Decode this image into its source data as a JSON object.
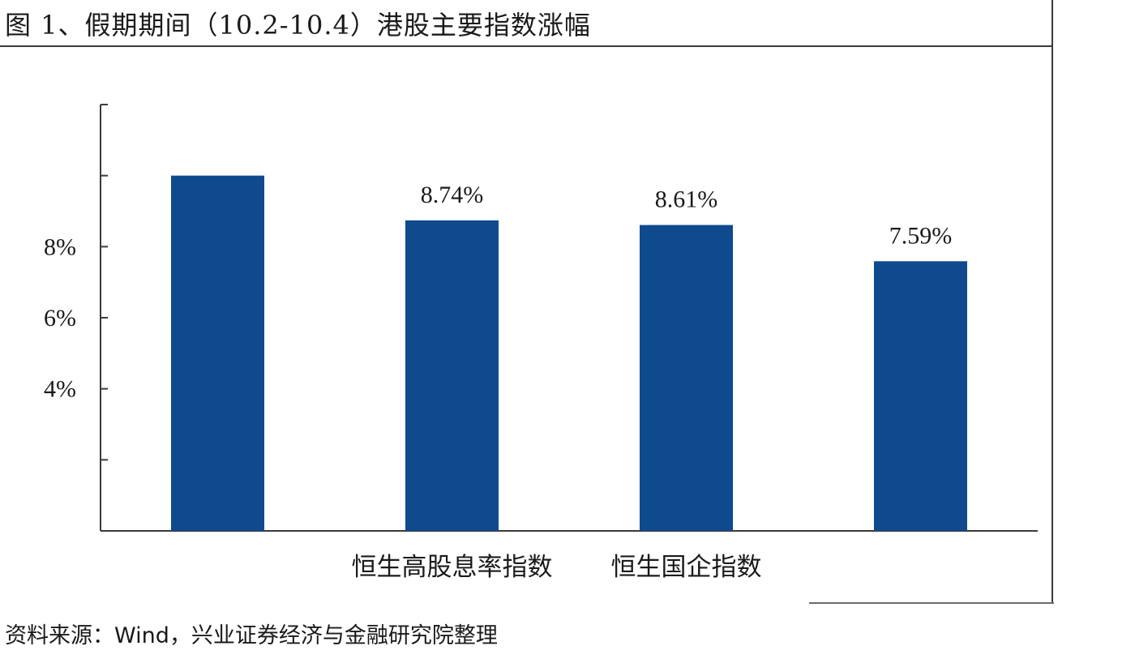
{
  "title": "图 1、假期期间（10.2-10.4）港股主要指数涨幅",
  "source": {
    "prefix": "资料来源：",
    "wind": "Wind",
    "suffix": "，兴业证券经济与金融研究院整理"
  },
  "colors": {
    "bar": "#0f4a8e",
    "axis": "#3a3a3a",
    "text": "#1a1a1a"
  },
  "chart_data": {
    "type": "bar",
    "title": "图 1、假期期间（10.2-10.4）港股主要指数涨幅",
    "xlabel": "",
    "ylabel": "",
    "ylim": [
      0,
      12
    ],
    "yticks": [
      {
        "value": 0,
        "label": ""
      },
      {
        "value": 2,
        "label": ""
      },
      {
        "value": 4,
        "label": "4%"
      },
      {
        "value": 6,
        "label": "6%"
      },
      {
        "value": 8,
        "label": "8%"
      },
      {
        "value": 10,
        "label": ""
      },
      {
        "value": 12,
        "label": ""
      }
    ],
    "categories": [
      "",
      "恒生高股息率指数",
      "恒生国企指数",
      ""
    ],
    "values": [
      10.0,
      8.74,
      8.61,
      7.59
    ],
    "data_labels": [
      "",
      "8.74%",
      "8.61%",
      "7.59%"
    ],
    "grid": false,
    "legend": "none"
  }
}
